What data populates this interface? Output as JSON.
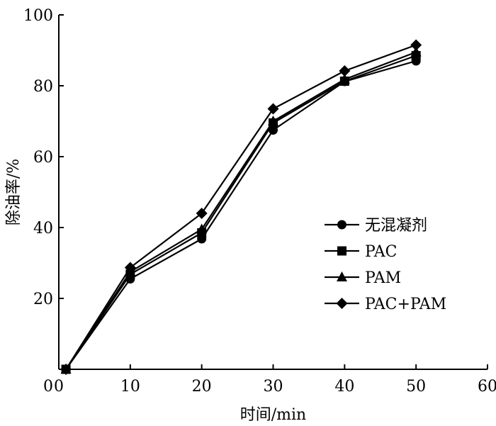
{
  "chart_data": {
    "type": "line",
    "title": "",
    "xlabel": "时间/min",
    "ylabel": "除油率/%",
    "xlim": [
      0,
      60
    ],
    "ylim": [
      0,
      100
    ],
    "xticks": [
      0,
      10,
      20,
      30,
      40,
      50,
      60
    ],
    "yticks": [
      20,
      40,
      60,
      80,
      100
    ],
    "y_zero_label": "0",
    "grid": false,
    "legend_position": "center-right",
    "x": [
      1,
      10,
      20,
      30,
      40,
      50
    ],
    "series": [
      {
        "name": "无混凝剂",
        "marker": "circle",
        "values": [
          0,
          25.5,
          36.8,
          67.5,
          81.2,
          87.0
        ]
      },
      {
        "name": "PAC",
        "marker": "square",
        "values": [
          0,
          26.8,
          38.5,
          69.5,
          81.3,
          88.5
        ]
      },
      {
        "name": "PAM",
        "marker": "triangle",
        "values": [
          0,
          27.5,
          39.5,
          70.0,
          81.8,
          89.5
        ]
      },
      {
        "name": "PAC+PAM",
        "marker": "diamond",
        "values": [
          0,
          28.7,
          44.0,
          73.5,
          84.2,
          91.5
        ]
      }
    ],
    "line_color": "#000000"
  }
}
